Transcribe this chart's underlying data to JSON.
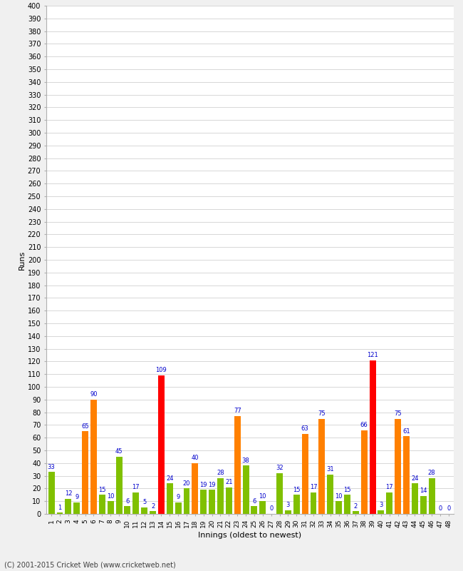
{
  "xlabel": "Innings (oldest to newest)",
  "ylabel": "Runs",
  "footer": "(C) 2001-2015 Cricket Web (www.cricketweb.net)",
  "ylim": [
    0,
    400
  ],
  "yticks": [
    0,
    10,
    20,
    30,
    40,
    50,
    60,
    70,
    80,
    90,
    100,
    110,
    120,
    130,
    140,
    150,
    160,
    170,
    180,
    190,
    200,
    210,
    220,
    230,
    240,
    250,
    260,
    270,
    280,
    290,
    300,
    310,
    320,
    330,
    340,
    350,
    360,
    370,
    380,
    390,
    400
  ],
  "innings": [
    1,
    2,
    3,
    4,
    5,
    6,
    7,
    8,
    9,
    10,
    11,
    12,
    13,
    14,
    15,
    16,
    17,
    18,
    19,
    20,
    21,
    22,
    23,
    24,
    25,
    26,
    27,
    28,
    29,
    30,
    31,
    32,
    33,
    34,
    35,
    36,
    37,
    38,
    39,
    40,
    41,
    42,
    43,
    44,
    45,
    46,
    47,
    48
  ],
  "values": [
    33,
    1,
    12,
    9,
    65,
    90,
    15,
    10,
    45,
    6,
    17,
    5,
    2,
    109,
    24,
    9,
    20,
    40,
    19,
    19,
    28,
    21,
    77,
    38,
    6,
    10,
    0,
    32,
    3,
    15,
    63,
    17,
    75,
    31,
    10,
    15,
    2,
    66,
    121,
    3,
    17,
    75,
    61,
    24,
    14,
    28,
    0,
    0
  ],
  "colors": [
    "#80c000",
    "#80c000",
    "#80c000",
    "#80c000",
    "#ff8000",
    "#ff8000",
    "#80c000",
    "#80c000",
    "#80c000",
    "#80c000",
    "#80c000",
    "#80c000",
    "#80c000",
    "#ff0000",
    "#80c000",
    "#80c000",
    "#80c000",
    "#ff8000",
    "#80c000",
    "#80c000",
    "#80c000",
    "#80c000",
    "#ff8000",
    "#80c000",
    "#80c000",
    "#80c000",
    "#80c000",
    "#80c000",
    "#80c000",
    "#80c000",
    "#ff8000",
    "#80c000",
    "#ff8000",
    "#80c000",
    "#80c000",
    "#80c000",
    "#80c000",
    "#ff8000",
    "#ff0000",
    "#80c000",
    "#80c000",
    "#ff8000",
    "#ff8000",
    "#80c000",
    "#80c000",
    "#80c000",
    "#80c000",
    "#80c000"
  ],
  "label_color": "#0000cc",
  "bg_color": "#f0f0f0",
  "plot_bg_color": "#ffffff",
  "grid_color": "#c8c8c8",
  "bar_width": 0.75
}
